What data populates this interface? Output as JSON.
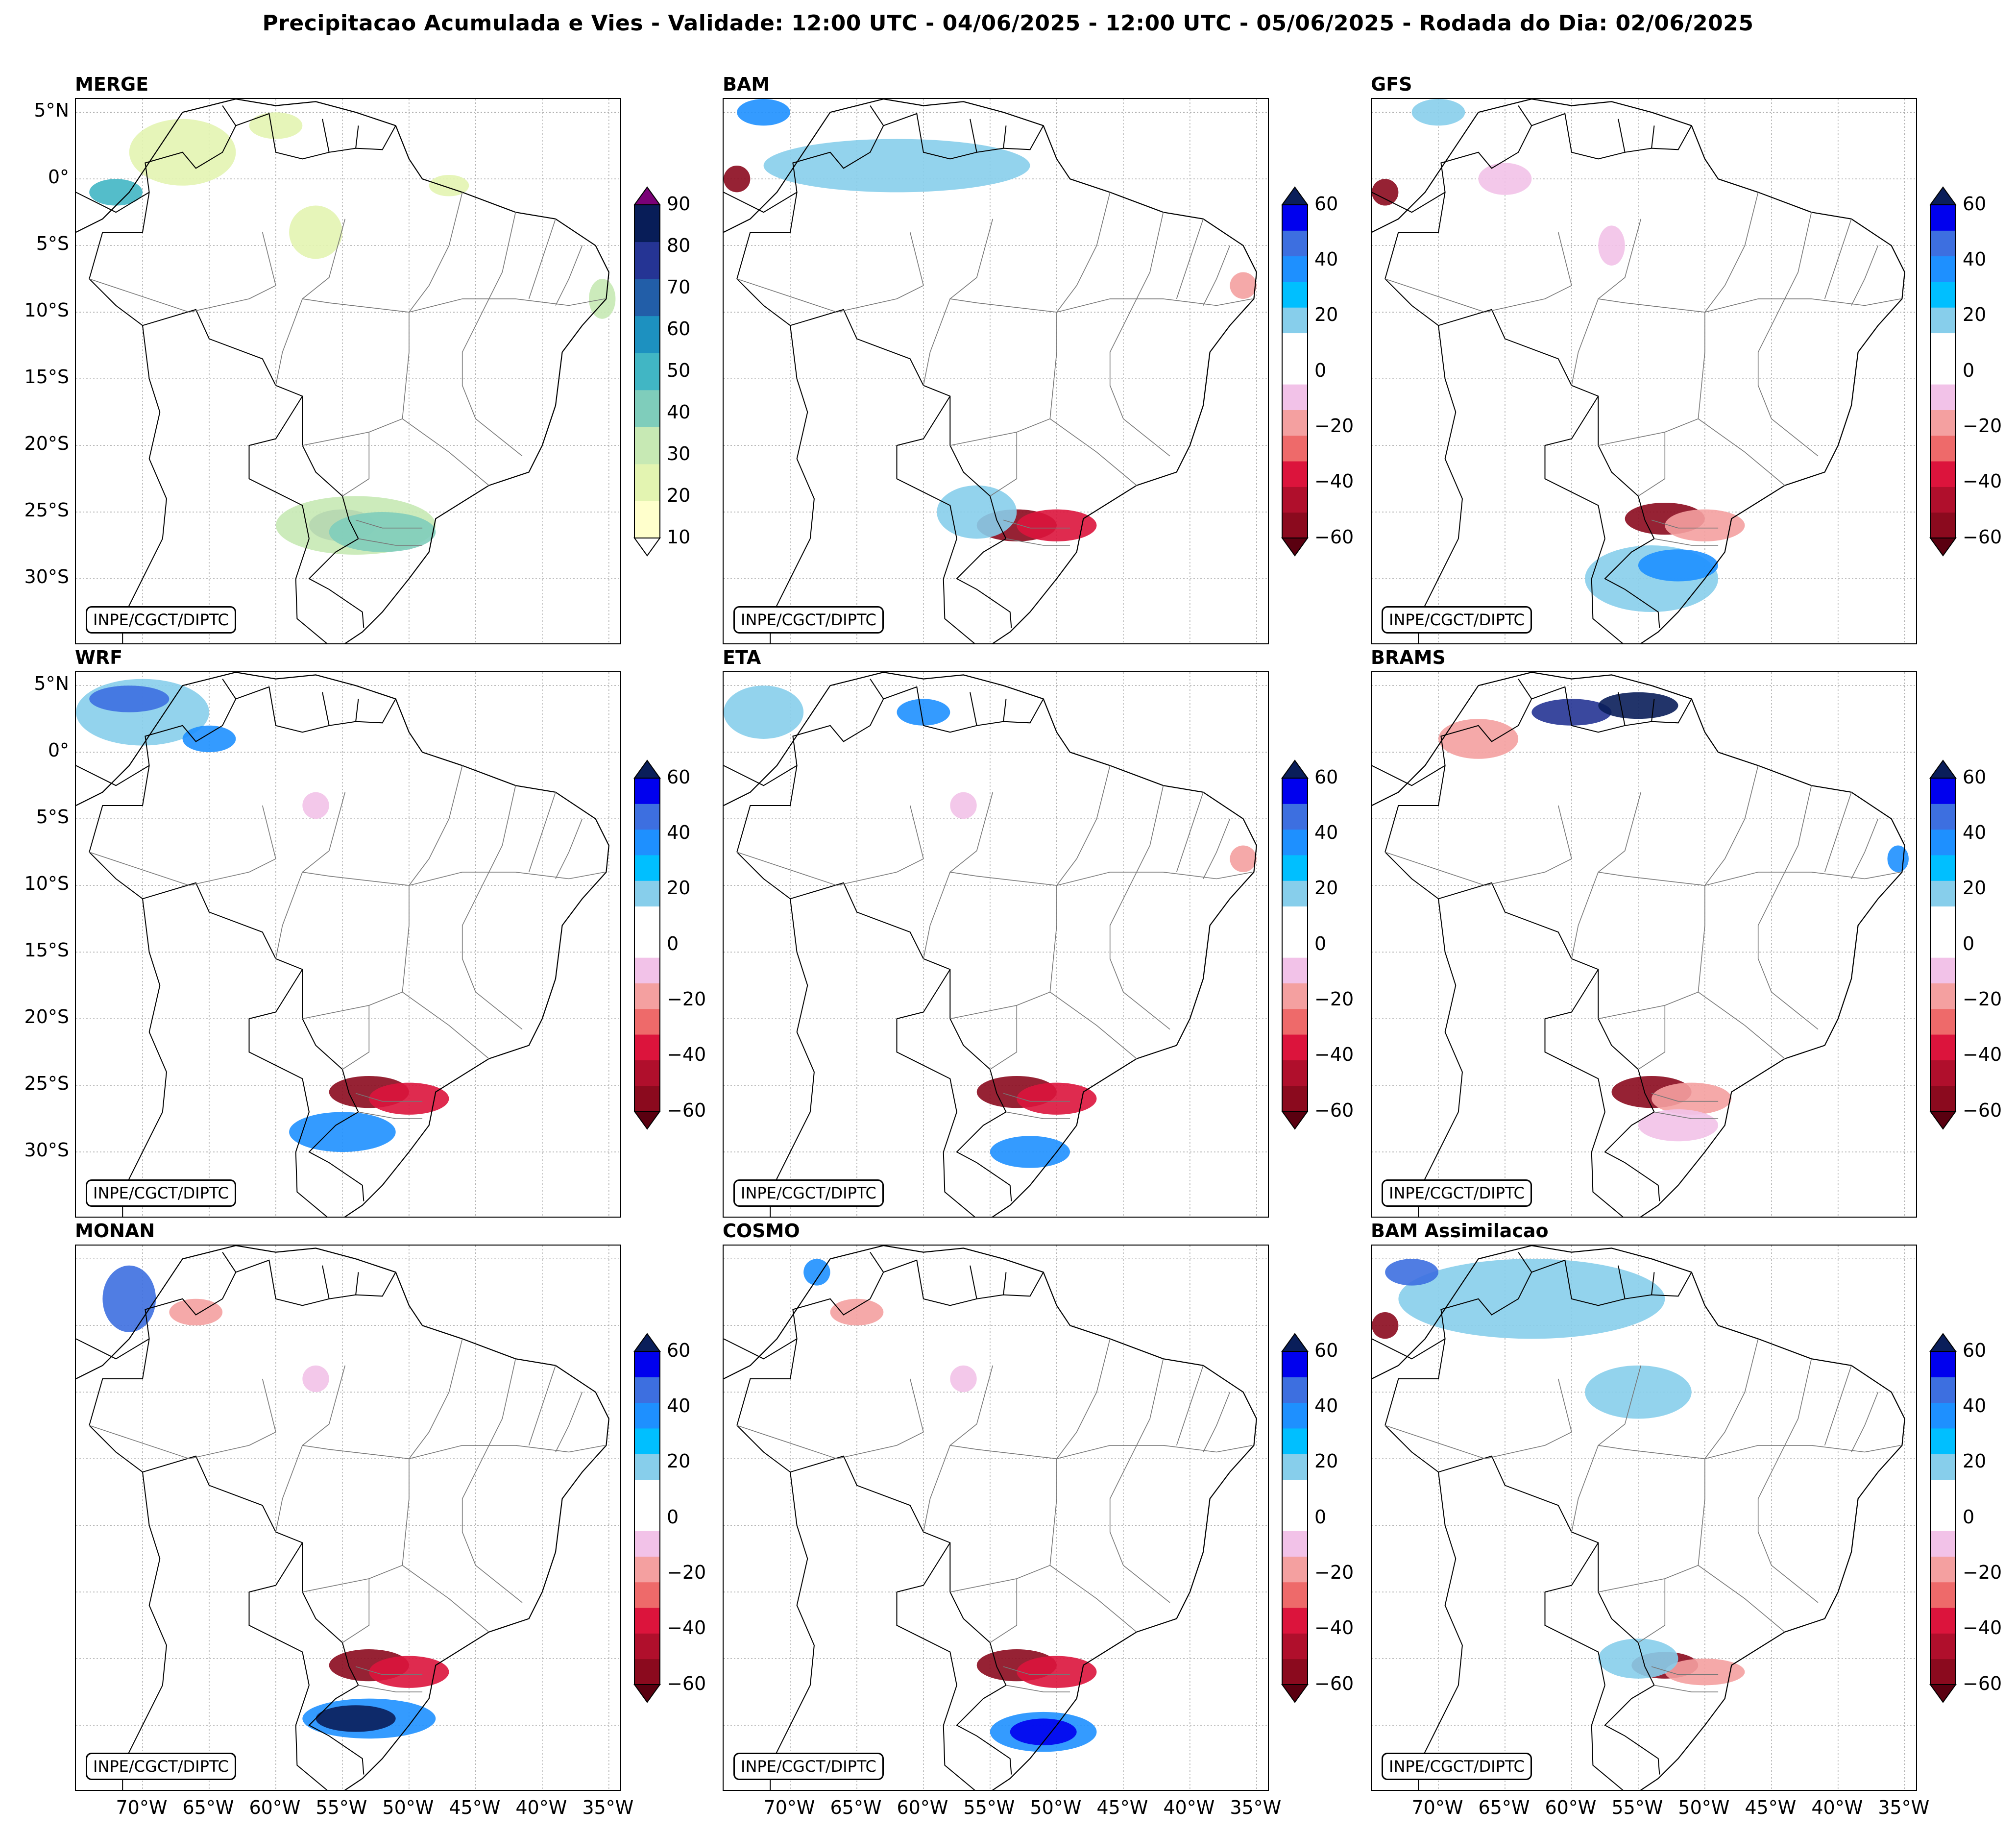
{
  "figure": {
    "title": "Precipitacao Acumulada e Vies - Validade: 12:00 UTC - 04/06/2025 - 12:00 UTC - 05/06/2025 - Rodada do Dia: 02/06/2025",
    "credit": "INPE/CGCT/DIPTC"
  },
  "axes": {
    "lat_labels": [
      "5°N",
      "0°",
      "5°S",
      "10°S",
      "15°S",
      "20°S",
      "25°S",
      "30°S"
    ],
    "lon_labels": [
      "70°W",
      "65°W",
      "60°W",
      "55°W",
      "50°W",
      "45°W",
      "40°W",
      "35°W"
    ]
  },
  "colorbars": {
    "merge": {
      "ticks": [
        "90",
        "80",
        "70",
        "60",
        "50",
        "40",
        "30",
        "20",
        "10"
      ],
      "colors": [
        "#ffffcc",
        "#e3f4b1",
        "#c7e9b4",
        "#7fcdbb",
        "#41b6c4",
        "#1d91c0",
        "#225ea8",
        "#253494",
        "#081d58"
      ],
      "over_color": "#7a0177",
      "under_color": "#ffffff"
    },
    "bias": {
      "ticks": [
        "60",
        "40",
        "20",
        "0",
        "−20",
        "−40",
        "−60"
      ],
      "colors": [
        "#0000ee",
        "#3d6fe0",
        "#1e90ff",
        "#00bfff",
        "#87ceeb",
        "#ffffff",
        "#ffffff",
        "#f2c2e8",
        "#f4a0a0",
        "#ee6a6a",
        "#dc143c",
        "#b00f2c",
        "#8b0a1e"
      ],
      "over_color": "#0a1e5a",
      "under_color": "#5a0010"
    }
  },
  "panels": [
    {
      "title": "MERGE",
      "kind": "merge"
    },
    {
      "title": "BAM",
      "kind": "bias"
    },
    {
      "title": "GFS",
      "kind": "bias"
    },
    {
      "title": "WRF",
      "kind": "bias"
    },
    {
      "title": "ETA",
      "kind": "bias"
    },
    {
      "title": "BRAMS",
      "kind": "bias"
    },
    {
      "title": "MONAN",
      "kind": "bias"
    },
    {
      "title": "COSMO",
      "kind": "bias"
    },
    {
      "title": "BAM Assimilacao",
      "kind": "bias"
    }
  ]
}
